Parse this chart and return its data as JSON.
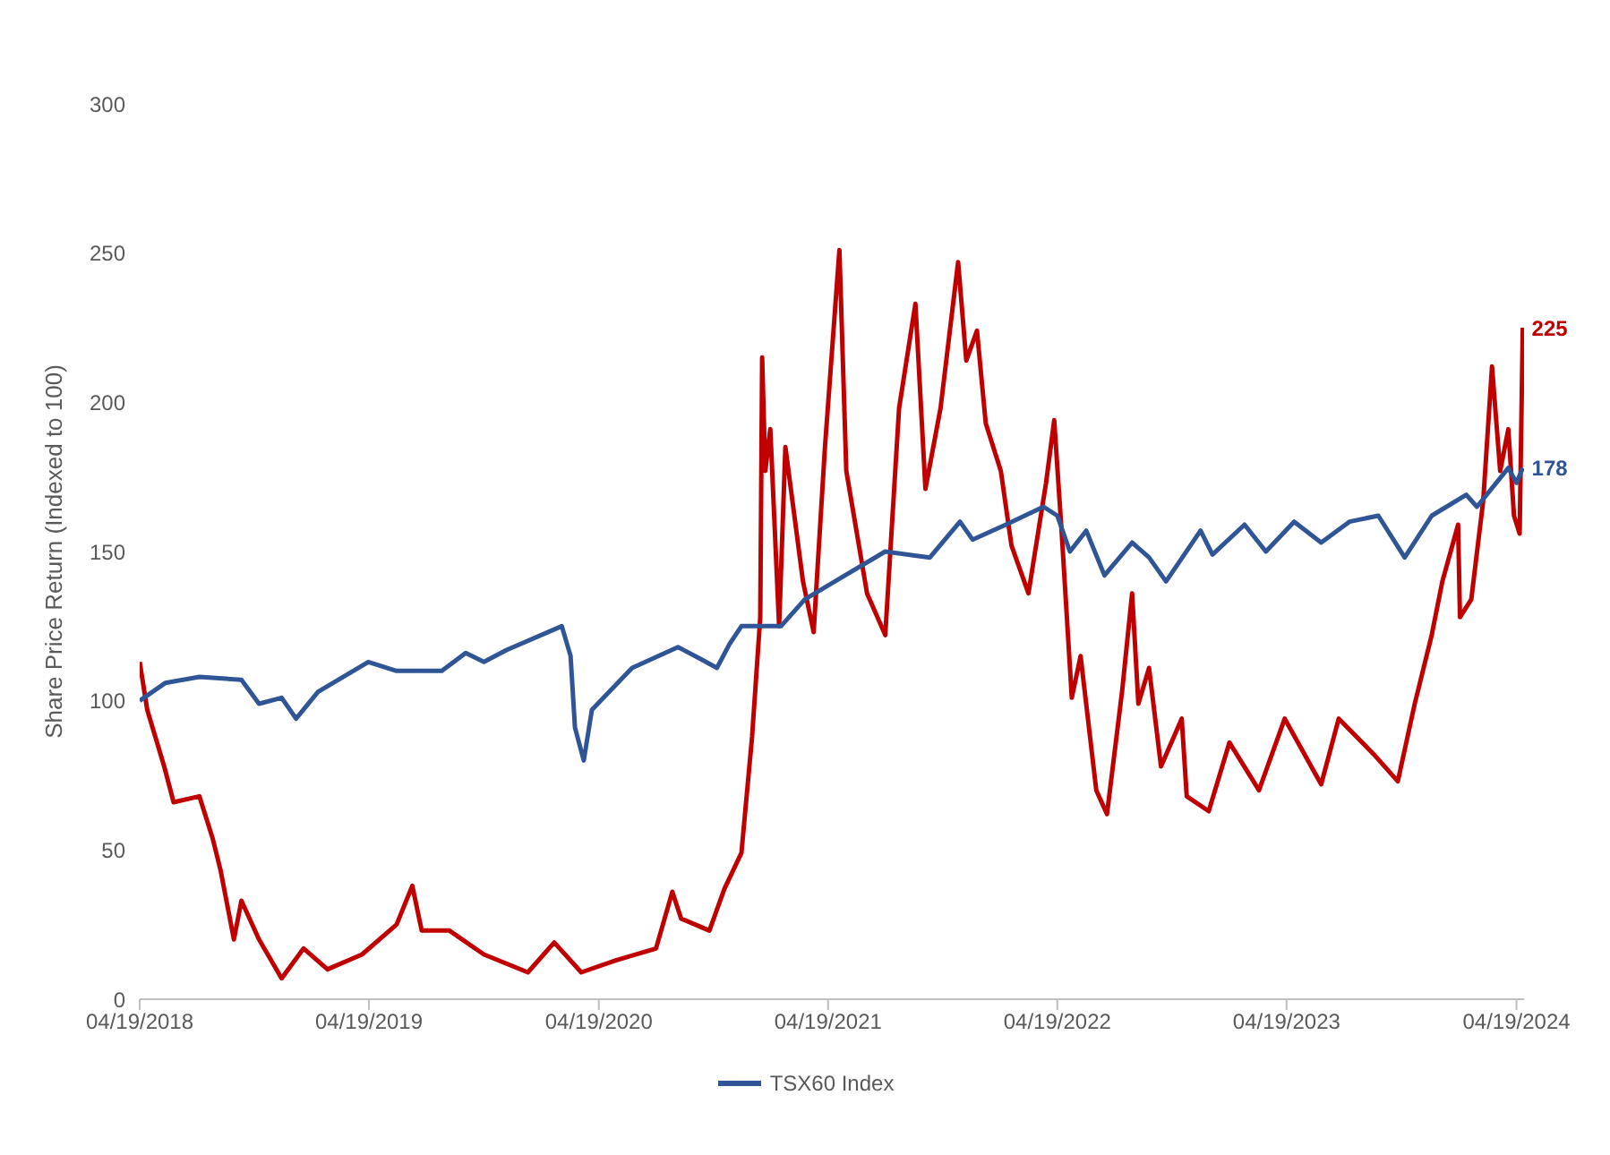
{
  "chart_data": {
    "type": "line",
    "ylabel": "Share Price Return (Indexed to 100)",
    "xlim": [
      "2018-04-19",
      "2024-05-01"
    ],
    "xticks": [
      {
        "value": "2018-04-19",
        "label": "04/19/2018"
      },
      {
        "value": "2019-04-19",
        "label": "04/19/2019"
      },
      {
        "value": "2020-04-19",
        "label": "04/19/2020"
      },
      {
        "value": "2021-04-19",
        "label": "04/19/2021"
      },
      {
        "value": "2022-04-19",
        "label": "04/19/2022"
      },
      {
        "value": "2023-04-19",
        "label": "04/19/2023"
      },
      {
        "value": "2024-04-19",
        "label": "04/19/2024"
      }
    ],
    "ylim": [
      0,
      300
    ],
    "yticks": [
      0,
      50,
      100,
      150,
      200,
      250,
      300
    ],
    "grid": false,
    "legend": "bottom",
    "line_style": "solid",
    "marker": "none",
    "series": [
      {
        "color": "#c00000",
        "x": [
          "2018-04-19",
          "2018-05-01",
          "2018-05-28",
          "2018-06-12",
          "2018-07-23",
          "2018-08-13",
          "2018-08-26",
          "2018-09-16",
          "2018-09-28",
          "2018-10-26",
          "2018-12-01",
          "2019-01-05",
          "2019-02-12",
          "2019-04-08",
          "2019-06-02",
          "2019-06-27",
          "2019-07-12",
          "2019-08-25",
          "2019-10-19",
          "2019-12-28",
          "2020-02-08",
          "2020-03-22",
          "2020-05-16",
          "2020-07-19",
          "2020-08-14",
          "2020-08-28",
          "2020-10-12",
          "2020-11-05",
          "2020-12-02",
          "2020-12-19",
          "2021-01-01",
          "2021-01-04",
          "2021-01-09",
          "2021-01-17",
          "2021-01-31",
          "2021-02-10",
          "2021-03-10",
          "2021-03-27",
          "2021-04-14",
          "2021-05-07",
          "2021-05-18",
          "2021-06-20",
          "2021-07-19",
          "2021-08-10",
          "2021-09-05",
          "2021-09-21",
          "2021-10-15",
          "2021-11-12",
          "2021-11-25",
          "2021-12-12",
          "2021-12-26",
          "2022-01-19",
          "2022-02-05",
          "2022-03-04",
          "2022-04-01",
          "2022-04-14",
          "2022-04-26",
          "2022-05-12",
          "2022-05-26",
          "2022-06-20",
          "2022-07-07",
          "2022-07-31",
          "2022-08-16",
          "2022-08-26",
          "2022-09-12",
          "2022-10-01",
          "2022-11-03",
          "2022-11-11",
          "2022-12-16",
          "2023-01-18",
          "2023-03-06",
          "2023-04-16",
          "2023-06-13",
          "2023-07-11",
          "2023-09-05",
          "2023-10-13",
          "2023-11-09",
          "2023-12-06",
          "2023-12-23",
          "2024-01-17",
          "2024-01-20",
          "2024-02-07",
          "2024-02-26",
          "2024-03-11",
          "2024-03-24",
          "2024-04-06",
          "2024-04-15",
          "2024-04-24",
          "2024-04-29"
        ],
        "values": [
          113,
          97,
          78,
          66,
          68,
          54,
          43,
          20,
          33,
          20,
          7,
          17,
          10,
          15,
          25,
          38,
          23,
          23,
          15,
          9,
          19,
          9,
          13,
          17,
          36,
          27,
          23,
          37,
          49,
          88,
          128,
          215,
          177,
          191,
          125,
          185,
          140,
          123,
          185,
          251,
          177,
          136,
          122,
          198,
          233,
          171,
          198,
          247,
          214,
          224,
          193,
          177,
          152,
          136,
          173,
          194,
          156,
          101,
          115,
          70,
          62,
          103,
          136,
          99,
          111,
          78,
          94,
          68,
          63,
          86,
          70,
          94,
          72,
          94,
          82,
          73,
          99,
          122,
          140,
          159,
          128,
          134,
          167,
          212,
          177,
          191,
          162,
          156,
          225
        ]
      },
      {
        "name": "TSX60 Index",
        "color": "#2f5597",
        "x": [
          "2018-04-19",
          "2018-05-30",
          "2018-07-23",
          "2018-09-28",
          "2018-10-26",
          "2018-12-01",
          "2018-12-24",
          "2019-01-28",
          "2019-04-18",
          "2019-06-02",
          "2019-08-13",
          "2019-09-20",
          "2019-10-19",
          "2019-11-24",
          "2020-02-20",
          "2020-03-05",
          "2020-03-12",
          "2020-03-26",
          "2020-04-08",
          "2020-06-11",
          "2020-08-23",
          "2020-09-28",
          "2020-10-24",
          "2020-11-13",
          "2020-12-02",
          "2021-01-01",
          "2021-02-03",
          "2021-03-13",
          "2021-05-16",
          "2021-07-19",
          "2021-09-28",
          "2021-11-15",
          "2021-12-05",
          "2022-01-27",
          "2022-03-28",
          "2022-04-19",
          "2022-05-09",
          "2022-06-04",
          "2022-07-03",
          "2022-08-16",
          "2022-09-12",
          "2022-10-09",
          "2022-12-03",
          "2022-12-22",
          "2023-02-11",
          "2023-03-17",
          "2023-05-01",
          "2023-06-13",
          "2023-07-28",
          "2023-09-12",
          "2023-10-24",
          "2023-12-06",
          "2024-01-30",
          "2024-02-16",
          "2024-04-06",
          "2024-04-19",
          "2024-04-29"
        ],
        "values": [
          100,
          106,
          108,
          107,
          99,
          101,
          94,
          103,
          113,
          110,
          110,
          116,
          113,
          117,
          125,
          115,
          91,
          80,
          97,
          111,
          118,
          114,
          111,
          119,
          125,
          125,
          125,
          134,
          142,
          150,
          148,
          160,
          154,
          159,
          165,
          162,
          150,
          157,
          142,
          153,
          148,
          140,
          157,
          149,
          159,
          150,
          160,
          153,
          160,
          162,
          148,
          162,
          169,
          165,
          178,
          173,
          178
        ]
      }
    ],
    "annotations": [
      {
        "text": "225",
        "x": "2024-04-29",
        "y": 225
      },
      {
        "text": "178",
        "x": "2024-04-29",
        "y": 178
      }
    ]
  }
}
